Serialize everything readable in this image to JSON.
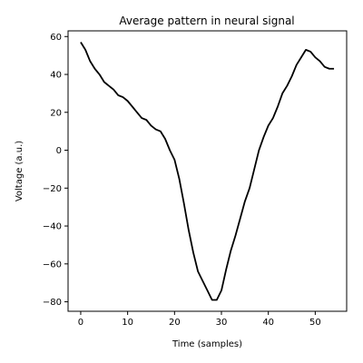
{
  "chart_data": {
    "type": "line",
    "title": "Average pattern in neural signal",
    "xlabel": "Time (samples)",
    "ylabel": "Voltage (a.u.)",
    "xlim": [
      -2.7,
      56.7
    ],
    "ylim": [
      -85,
      63
    ],
    "xticks": [
      0,
      10,
      20,
      30,
      40,
      50
    ],
    "yticks": [
      -80,
      -60,
      -40,
      -20,
      0,
      20,
      40,
      60
    ],
    "ytick_labels": [
      "−80",
      "−60",
      "−40",
      "−20",
      "0",
      "20",
      "40",
      "60"
    ],
    "grid": false,
    "series": [
      {
        "color": "#000000",
        "x": [
          0,
          1,
          2,
          3,
          4,
          5,
          6,
          7,
          8,
          9,
          10,
          11,
          12,
          13,
          14,
          15,
          16,
          17,
          18,
          19,
          20,
          21,
          22,
          23,
          24,
          25,
          26,
          27,
          28,
          29,
          30,
          31,
          32,
          33,
          34,
          35,
          36,
          37,
          38,
          39,
          40,
          41,
          42,
          43,
          44,
          45,
          46,
          47,
          48,
          49,
          50,
          51,
          52,
          53,
          54
        ],
        "y": [
          57,
          53,
          47,
          43,
          40,
          36,
          34,
          32,
          29,
          28,
          26,
          23,
          20,
          17,
          16,
          13,
          11,
          10,
          6,
          0,
          -5,
          -15,
          -28,
          -42,
          -54,
          -64,
          -69,
          -74,
          -79,
          -79,
          -74,
          -63,
          -53,
          -45,
          -36,
          -27,
          -20,
          -10,
          0,
          7,
          13,
          17,
          23,
          30,
          34,
          39,
          45,
          49,
          53,
          52,
          49,
          47,
          44,
          43,
          43
        ]
      }
    ]
  }
}
